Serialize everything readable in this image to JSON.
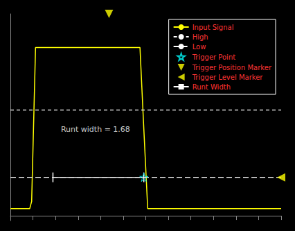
{
  "chart_data": {
    "type": "line",
    "xlim": [
      0.0,
      7.0
    ],
    "ylim": [
      -0.1,
      4.2
    ],
    "xticks": [
      0.0,
      0.583,
      1.167,
      1.75,
      2.333,
      2.917,
      3.5,
      4.083,
      4.667,
      5.25,
      5.833,
      6.417,
      7.0
    ],
    "tick_labels": false,
    "grid": false,
    "legend": "upper right",
    "series": [
      {
        "name": "Input Signal",
        "type": "line",
        "color": "#ffff00",
        "line_style": "solid",
        "x": [
          0.0,
          0.5,
          0.55,
          0.65,
          1.05,
          1.1,
          3.35,
          3.45,
          3.55,
          7.0
        ],
        "values": [
          0.15,
          0.15,
          0.3,
          3.5,
          3.5,
          3.5,
          3.5,
          1.8,
          0.15,
          0.15
        ]
      },
      {
        "name": "High",
        "type": "line",
        "color": "#ffffff",
        "line_style": "dashed",
        "x": [
          0.0,
          7.0
        ],
        "values": [
          2.2,
          2.2
        ]
      },
      {
        "name": "Low",
        "type": "line",
        "color": "#ffffff",
        "line_style": "longdash",
        "x": [
          0.0,
          7.0
        ],
        "values": [
          0.8,
          0.8
        ]
      },
      {
        "name": "Trigger Point",
        "type": "scatter",
        "color": "#00ffff",
        "marker": "star",
        "x": [
          3.45
        ],
        "values": [
          0.8
        ]
      },
      {
        "name": "Trigger Position Marker",
        "type": "scatter",
        "color": "#ffff00",
        "marker": "triangle-down",
        "x": [
          2.55
        ],
        "values": [
          4.2
        ]
      },
      {
        "name": "Trigger Level Marker",
        "type": "scatter",
        "color": "#ffff00",
        "marker": "triangle-left",
        "x": [
          7.0
        ],
        "values": [
          0.8
        ]
      },
      {
        "name": "Runt Width",
        "type": "line",
        "color": "#ffffff",
        "line_style": "solid",
        "marker": "vline",
        "x": [
          1.1,
          3.45
        ],
        "values": [
          0.8,
          0.8
        ]
      }
    ],
    "annotations": [
      {
        "text": "Runt width = 1.68",
        "x": 2.2,
        "y": 1.8
      }
    ]
  }
}
